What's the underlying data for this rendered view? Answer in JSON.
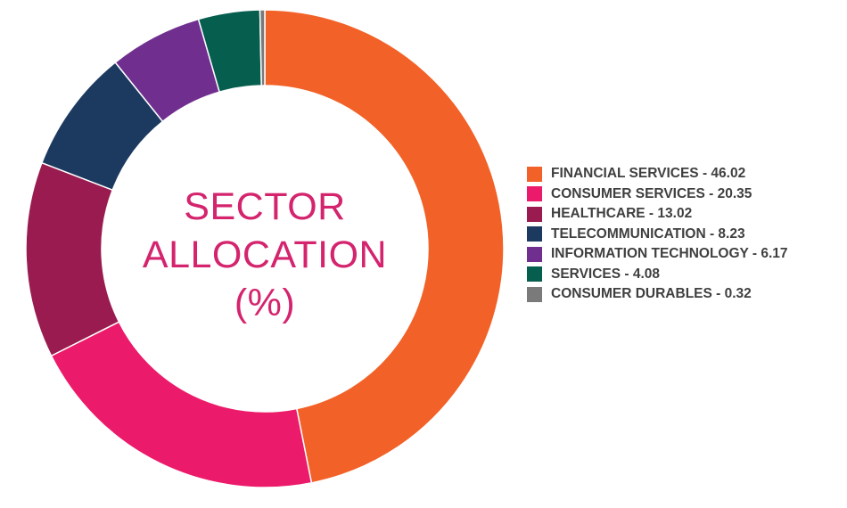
{
  "chart_data": {
    "type": "pie",
    "style": "donut",
    "center_title": [
      "SECTOR",
      "ALLOCATION",
      "(%)"
    ],
    "legend_position": "right",
    "series": [
      {
        "name": "FINANCIAL SERVICES",
        "value": 46.02,
        "color": "#f26127",
        "label": "FINANCIAL SERVICES - 46.02"
      },
      {
        "name": "CONSUMER SERVICES",
        "value": 20.35,
        "color": "#ec1a6a",
        "label": "CONSUMER SERVICES - 20.35"
      },
      {
        "name": "HEALTHCARE",
        "value": 13.02,
        "color": "#9a1b4f",
        "label": "HEALTHCARE - 13.02"
      },
      {
        "name": "TELECOMMUNICATION",
        "value": 8.23,
        "color": "#1c3a60",
        "label": "TELECOMMUNICATION - 8.23"
      },
      {
        "name": "INFORMATION TECHNOLOGY",
        "value": 6.17,
        "color": "#702f8f",
        "label": "INFORMATION TECHNOLOGY - 6.17"
      },
      {
        "name": "SERVICES",
        "value": 4.08,
        "color": "#065e4f",
        "label": "SERVICES - 4.08"
      },
      {
        "name": "CONSUMER DURABLES",
        "value": 0.32,
        "color": "#7a7a7a",
        "label": "CONSUMER DURABLES - 0.32"
      }
    ]
  }
}
